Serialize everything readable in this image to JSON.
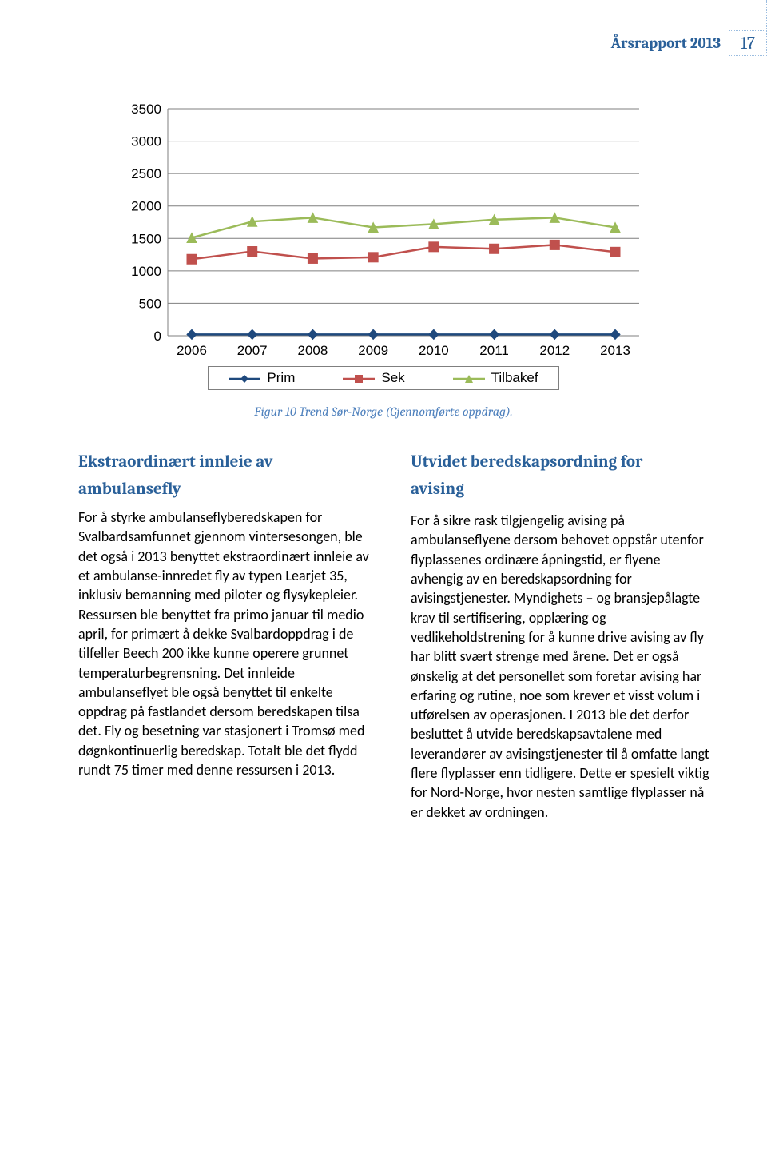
{
  "header": {
    "title": "Årsrapport 2013",
    "page_number": "17"
  },
  "chart": {
    "type": "line",
    "categories": [
      "2006",
      "2007",
      "2008",
      "2009",
      "2010",
      "2011",
      "2012",
      "2013"
    ],
    "series": {
      "prim": {
        "label": "Prim",
        "color": "#1f497d",
        "marker": "diamond",
        "values": [
          20,
          20,
          20,
          20,
          20,
          20,
          20,
          20
        ]
      },
      "sek": {
        "label": "Sek",
        "color": "#c0504d",
        "marker": "square",
        "values": [
          1180,
          1300,
          1190,
          1210,
          1370,
          1340,
          1400,
          1290
        ]
      },
      "tilbakef": {
        "label": "Tilbakef",
        "color": "#9bbb59",
        "marker": "triangle",
        "values": [
          1510,
          1760,
          1820,
          1670,
          1720,
          1790,
          1820,
          1670
        ]
      }
    },
    "ylim": [
      0,
      3500
    ],
    "ytick_step": 500,
    "grid_color": "#7f7f7f",
    "axis_font_size": 17,
    "caption": "Figur 10 Trend Sør-Norge (Gjennomførte oppdrag)."
  },
  "left": {
    "heading1": "Ekstraordinært innleie av",
    "heading2": "ambulansefly",
    "body": "For å styrke ambulanseflyberedskapen for Svalbardsamfunnet gjennom vintersesongen, ble det også i 2013 benyttet ekstraordinært innleie av et ambulanse-innredet fly av typen Learjet 35, inklusiv bemanning med piloter og flysykepleier. Ressursen ble benyttet fra primo januar til medio april, for primært å dekke Svalbardoppdrag i de tilfeller Beech 200 ikke kunne operere grunnet temperaturbegrensning. Det innleide ambulanseflyet ble også benyttet til enkelte oppdrag på fastlandet dersom beredskapen tilsa det. Fly og besetning var stasjonert i Tromsø med døgnkontinuerlig beredskap. Totalt ble det flydd rundt 75 timer med denne ressursen i 2013."
  },
  "right": {
    "heading1": "Utvidet beredskapsordning for",
    "heading2": "avising",
    "body": "For å sikre rask tilgjengelig avising på ambulanseflyene dersom behovet oppstår utenfor flyplassenes ordinære åpningstid, er flyene avhengig av en beredskapsordning for avisingstjenester. Myndighets – og bransjepålagte krav til sertifisering, opplæring og vedlikeholdstrening for å kunne drive avising av fly har blitt svært strenge med årene. Det er også ønskelig at det personellet som foretar avising har erfaring og rutine, noe som krever et visst volum i utførelsen av operasjonen. I 2013 ble det derfor besluttet å utvide beredskapsavtalene med leverandører av avisingstjenester til å omfatte langt flere flyplasser enn tidligere. Dette er spesielt viktig for Nord-Norge, hvor nesten samtlige flyplasser nå er dekket av ordningen."
  },
  "legend_labels": {
    "prim": "Prim",
    "sek": "Sek",
    "tilbakef": "Tilbakef"
  }
}
